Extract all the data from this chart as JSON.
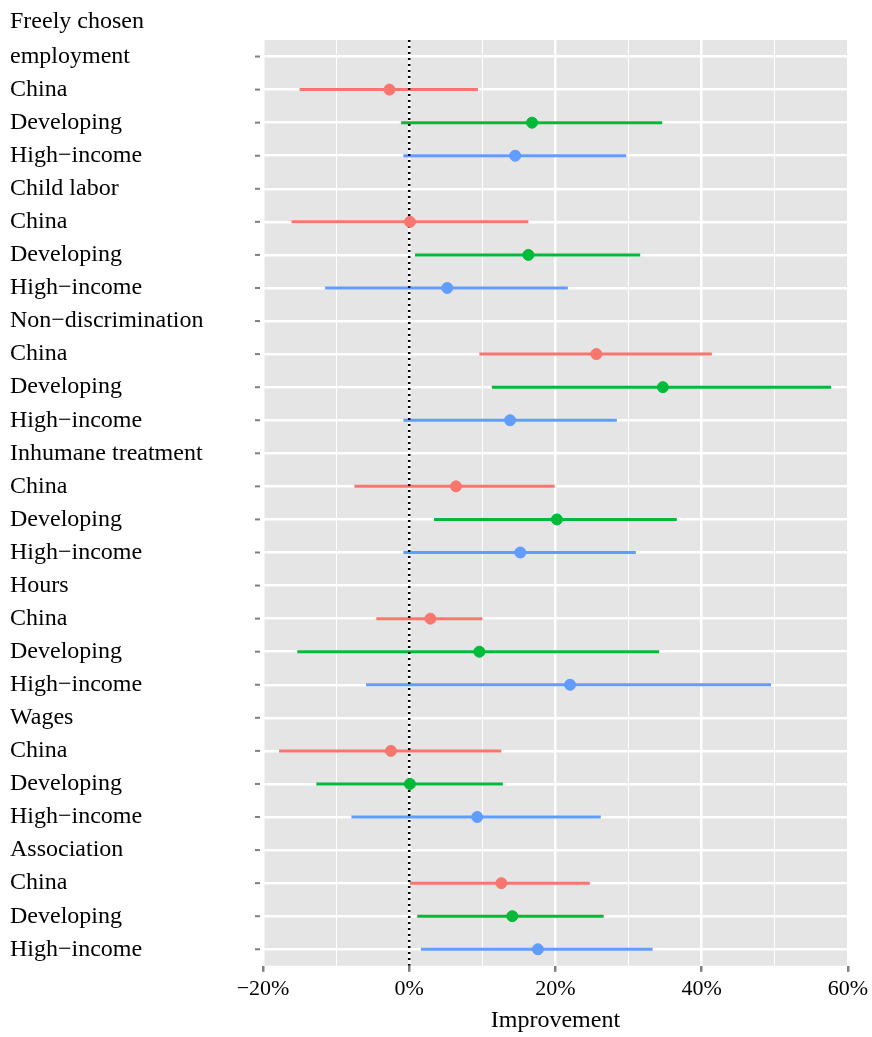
{
  "chart_data": {
    "type": "scatter",
    "orientation": "horizontal",
    "xlabel": "Improvement",
    "categories": [
      "Freely chosen employment",
      "China",
      "Developing",
      "High−income",
      "Child labor",
      "China",
      "Developing",
      "High−income",
      "Non−discrimination",
      "China",
      "Developing",
      "High−income",
      "Inhumane treatment",
      "China",
      "Developing",
      "High−income",
      "Hours",
      "China",
      "Developing",
      "High−income",
      "Wages",
      "China",
      "Developing",
      "High−income",
      "Association",
      "China",
      "Developing",
      "High−income"
    ],
    "series": [
      {
        "color": "#f8766d",
        "values": [
          null,
          -2.7,
          null,
          null,
          null,
          0.1,
          null,
          null,
          null,
          25.6,
          null,
          null,
          null,
          6.4,
          null,
          null,
          null,
          2.9,
          null,
          null,
          null,
          -2.5,
          null,
          null,
          null,
          12.6,
          null,
          null
        ],
        "errors": [
          null,
          [
            -15.0,
            9.4
          ],
          null,
          null,
          null,
          [
            -16.1,
            16.3
          ],
          null,
          null,
          null,
          [
            9.6,
            41.4
          ],
          null,
          null,
          null,
          [
            -7.5,
            19.9
          ],
          null,
          null,
          null,
          [
            -4.5,
            10.0
          ],
          null,
          null,
          null,
          [
            -17.8,
            12.6
          ],
          null,
          null,
          null,
          [
            0.1,
            24.7
          ],
          null,
          null
        ]
      },
      {
        "color": "#00ba38",
        "values": [
          null,
          null,
          16.8,
          null,
          null,
          null,
          16.3,
          null,
          null,
          null,
          34.7,
          null,
          null,
          null,
          20.2,
          null,
          null,
          null,
          9.6,
          null,
          null,
          null,
          0.1,
          null,
          null,
          null,
          14.1,
          null
        ],
        "errors": [
          null,
          null,
          [
            -1.1,
            34.6
          ],
          null,
          null,
          null,
          [
            0.8,
            31.6
          ],
          null,
          null,
          null,
          [
            11.3,
            57.7
          ],
          null,
          null,
          null,
          [
            3.4,
            36.6
          ],
          null,
          null,
          null,
          [
            -15.3,
            34.2
          ],
          null,
          null,
          null,
          [
            -12.7,
            12.8
          ],
          null,
          null,
          null,
          [
            1.1,
            26.6
          ],
          null
        ]
      },
      {
        "color": "#619cff",
        "values": [
          null,
          null,
          null,
          14.5,
          null,
          null,
          null,
          5.2,
          null,
          null,
          null,
          13.8,
          null,
          null,
          null,
          15.2,
          null,
          null,
          null,
          22.0,
          null,
          null,
          null,
          9.3,
          null,
          null,
          null,
          17.6
        ],
        "errors": [
          null,
          null,
          null,
          [
            -0.8,
            29.7
          ],
          null,
          null,
          null,
          [
            -11.5,
            21.7
          ],
          null,
          null,
          null,
          [
            -0.8,
            28.4
          ],
          null,
          null,
          null,
          [
            -0.8,
            31.0
          ],
          null,
          null,
          null,
          [
            -5.9,
            49.5
          ],
          null,
          null,
          null,
          [
            -7.9,
            26.2
          ],
          null,
          null,
          null,
          [
            1.6,
            33.3
          ]
        ]
      }
    ],
    "xlim": [
      -20,
      60
    ],
    "xticks": [
      {
        "value": -20,
        "label": "−20%"
      },
      {
        "value": -10,
        "label": null
      },
      {
        "value": 0,
        "label": "0%"
      },
      {
        "value": 10,
        "label": null
      },
      {
        "value": 20,
        "label": "20%"
      },
      {
        "value": 30,
        "label": null
      },
      {
        "value": 40,
        "label": "40%"
      },
      {
        "value": 50,
        "label": null
      },
      {
        "value": 60,
        "label": "60%"
      }
    ],
    "ref_lines": [
      {
        "axis": "x",
        "value": 0,
        "color": "#000000",
        "line_style": "dotted"
      }
    ],
    "marker": "circle",
    "grid": true,
    "legend": false
  }
}
